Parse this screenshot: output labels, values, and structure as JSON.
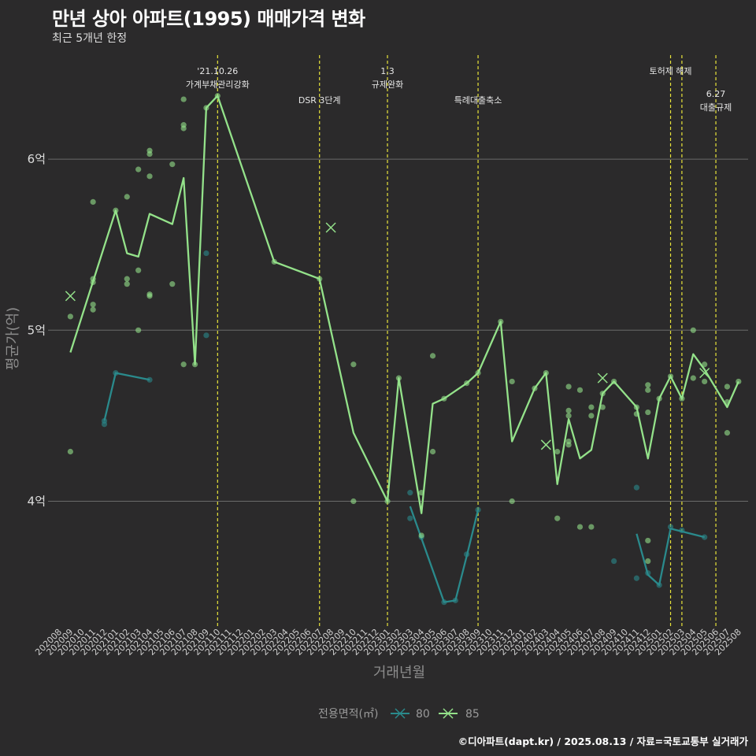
{
  "header": {
    "title": "만년 상아 아파트(1995) 매매가격 변화",
    "subtitle": "최근 5개년 한정"
  },
  "footer": {
    "caption": "©디아파트(dapt.kr) / 2025.08.13 / 자료=국토교통부 실거래가"
  },
  "colors": {
    "background": "#2b2a2b",
    "grid": "#6b6b6b",
    "series_80": "#2a8a8c",
    "series_85": "#94e28a",
    "annotation_line": "#e8e43a"
  },
  "chart_data": {
    "type": "line",
    "xlabel": "거래년월",
    "ylabel": "평균가(억)",
    "ylim": [
      3.3,
      6.65
    ],
    "y_ticks": [
      {
        "value": 4,
        "label": "4억"
      },
      {
        "value": 5,
        "label": "5억"
      },
      {
        "value": 6,
        "label": "6억"
      }
    ],
    "x_categories": [
      "202008",
      "202009",
      "202010",
      "202011",
      "202012",
      "202101",
      "202102",
      "202103",
      "202104",
      "202105",
      "202106",
      "202107",
      "202108",
      "202109",
      "202110",
      "202111",
      "202112",
      "202201",
      "202202",
      "202203",
      "202204",
      "202205",
      "202206",
      "202207",
      "202208",
      "202209",
      "202210",
      "202211",
      "202212",
      "202301",
      "202302",
      "202303",
      "202304",
      "202305",
      "202306",
      "202307",
      "202308",
      "202309",
      "202310",
      "202311",
      "202312",
      "202401",
      "202402",
      "202403",
      "202404",
      "202405",
      "202406",
      "202407",
      "202408",
      "202409",
      "202410",
      "202411",
      "202412",
      "202501",
      "202502",
      "202503",
      "202504",
      "202505",
      "202506",
      "202507",
      "202508"
    ],
    "legend": {
      "title": "전용면적(㎡)",
      "position": "bottom"
    },
    "annotations": [
      {
        "x": "2021-10",
        "lines": [
          "'21.10.26",
          "가계부채관리강화"
        ],
        "row": 0
      },
      {
        "x": "2022-07",
        "lines": [
          "DSR 3단계"
        ],
        "row": 1
      },
      {
        "x": "2023-01",
        "lines": [
          "1.3",
          "규제완화"
        ],
        "row": 0
      },
      {
        "x": "2023-09",
        "lines": [
          "특례대출축소"
        ],
        "row": 1
      },
      {
        "x": "2025-02",
        "lines": [
          "토허제 해제"
        ],
        "row": 0
      },
      {
        "x": "2025-03",
        "lines": [],
        "row": 0
      },
      {
        "x": "2025-06",
        "lines": [
          "6.27",
          "대출규제"
        ],
        "row": 2
      }
    ],
    "series": [
      {
        "name": "80",
        "line_segments": [
          [
            [
              "2020-12",
              4.47
            ],
            [
              "2021-01",
              4.75
            ],
            [
              "2021-04",
              4.71
            ]
          ],
          [
            [
              "2023-03",
              3.97
            ],
            [
              "2023-06",
              3.41
            ],
            [
              "2023-07",
              3.42
            ],
            [
              "2023-08",
              3.68
            ],
            [
              "2023-09",
              3.95
            ]
          ],
          [
            [
              "2024-11",
              3.81
            ],
            [
              "2024-12",
              3.57
            ],
            [
              "2025-01",
              3.51
            ],
            [
              "2025-02",
              3.84
            ],
            [
              "2025-05",
              3.79
            ]
          ]
        ],
        "points": [
          [
            "2020-12",
            4.47
          ],
          [
            "2020-12",
            4.45
          ],
          [
            "2021-01",
            4.75
          ],
          [
            "2021-04",
            4.71
          ],
          [
            "2021-09",
            4.97
          ],
          [
            "2021-09",
            5.45
          ],
          [
            "2023-03",
            4.05
          ],
          [
            "2023-03",
            3.9
          ],
          [
            "2023-04",
            3.79
          ],
          [
            "2023-06",
            3.41
          ],
          [
            "2023-07",
            3.42
          ],
          [
            "2023-08",
            3.69
          ],
          [
            "2023-09",
            3.95
          ],
          [
            "2024-09",
            3.65
          ],
          [
            "2024-11",
            4.08
          ],
          [
            "2024-11",
            3.55
          ],
          [
            "2024-12",
            3.58
          ],
          [
            "2025-01",
            3.51
          ],
          [
            "2025-02",
            3.85
          ],
          [
            "2025-03",
            3.83
          ],
          [
            "2025-05",
            3.79
          ]
        ],
        "cross_points": []
      },
      {
        "name": "85",
        "line_segments": [
          [
            [
              "2020-09",
              4.87
            ],
            [
              "2021-01",
              5.7
            ],
            [
              "2021-02",
              5.45
            ],
            [
              "2021-03",
              5.43
            ],
            [
              "2021-04",
              5.68
            ],
            [
              "2021-06",
              5.62
            ],
            [
              "2021-07",
              5.89
            ],
            [
              "2021-08",
              4.8
            ],
            [
              "2021-09",
              6.3
            ],
            [
              "2021-10",
              6.37
            ],
            [
              "2022-03",
              5.4
            ],
            [
              "2022-07",
              5.3
            ],
            [
              "2022-10",
              4.4
            ],
            [
              "2023-01",
              4.0
            ],
            [
              "2023-02",
              4.72
            ],
            [
              "2023-04",
              3.93
            ],
            [
              "2023-05",
              4.57
            ],
            [
              "2023-06",
              4.6
            ],
            [
              "2023-08",
              4.69
            ],
            [
              "2023-09",
              4.75
            ],
            [
              "2023-11",
              5.05
            ],
            [
              "2023-12",
              4.35
            ],
            [
              "2024-02",
              4.66
            ],
            [
              "2024-03",
              4.75
            ],
            [
              "2024-04",
              4.1
            ],
            [
              "2024-05",
              4.48
            ],
            [
              "2024-06",
              4.25
            ],
            [
              "2024-07",
              4.3
            ],
            [
              "2024-08",
              4.63
            ],
            [
              "2024-09",
              4.7
            ],
            [
              "2024-11",
              4.55
            ],
            [
              "2024-12",
              4.25
            ],
            [
              "2025-01",
              4.6
            ],
            [
              "2025-02",
              4.73
            ],
            [
              "2025-03",
              4.6
            ],
            [
              "2025-04",
              4.86
            ],
            [
              "2025-05",
              4.77
            ],
            [
              "2025-07",
              4.55
            ],
            [
              "2025-08",
              4.7
            ]
          ]
        ],
        "points": [
          [
            "2020-09",
            5.08
          ],
          [
            "2020-09",
            4.29
          ],
          [
            "2020-11",
            5.75
          ],
          [
            "2020-11",
            5.3
          ],
          [
            "2020-11",
            5.28
          ],
          [
            "2020-11",
            5.15
          ],
          [
            "2020-11",
            5.12
          ],
          [
            "2021-01",
            5.7
          ],
          [
            "2021-02",
            5.78
          ],
          [
            "2021-02",
            5.3
          ],
          [
            "2021-02",
            5.27
          ],
          [
            "2021-03",
            5.94
          ],
          [
            "2021-03",
            5.35
          ],
          [
            "2021-03",
            5.0
          ],
          [
            "2021-04",
            6.05
          ],
          [
            "2021-04",
            6.03
          ],
          [
            "2021-04",
            5.9
          ],
          [
            "2021-04",
            5.21
          ],
          [
            "2021-04",
            5.2
          ],
          [
            "2021-06",
            5.97
          ],
          [
            "2021-06",
            5.27
          ],
          [
            "2021-07",
            6.35
          ],
          [
            "2021-07",
            6.2
          ],
          [
            "2021-07",
            6.18
          ],
          [
            "2021-07",
            4.8
          ],
          [
            "2021-08",
            4.8
          ],
          [
            "2021-09",
            6.3
          ],
          [
            "2021-10",
            6.37
          ],
          [
            "2022-03",
            5.4
          ],
          [
            "2022-07",
            5.3
          ],
          [
            "2022-10",
            4.8
          ],
          [
            "2022-10",
            4.0
          ],
          [
            "2023-01",
            4.0
          ],
          [
            "2023-02",
            4.72
          ],
          [
            "2023-04",
            4.05
          ],
          [
            "2023-04",
            3.8
          ],
          [
            "2023-05",
            4.85
          ],
          [
            "2023-05",
            4.29
          ],
          [
            "2023-06",
            4.6
          ],
          [
            "2023-08",
            4.69
          ],
          [
            "2023-09",
            4.75
          ],
          [
            "2023-11",
            5.05
          ],
          [
            "2023-12",
            4.7
          ],
          [
            "2023-12",
            4.0
          ],
          [
            "2024-02",
            4.66
          ],
          [
            "2024-03",
            4.75
          ],
          [
            "2024-04",
            4.29
          ],
          [
            "2024-04",
            3.9
          ],
          [
            "2024-05",
            4.67
          ],
          [
            "2024-05",
            4.53
          ],
          [
            "2024-05",
            4.5
          ],
          [
            "2024-05",
            4.35
          ],
          [
            "2024-05",
            4.33
          ],
          [
            "2024-06",
            4.65
          ],
          [
            "2024-06",
            3.85
          ],
          [
            "2024-07",
            4.55
          ],
          [
            "2024-07",
            4.5
          ],
          [
            "2024-07",
            3.85
          ],
          [
            "2024-08",
            4.63
          ],
          [
            "2024-08",
            4.55
          ],
          [
            "2024-09",
            4.7
          ],
          [
            "2024-11",
            4.55
          ],
          [
            "2024-11",
            4.51
          ],
          [
            "2024-12",
            4.68
          ],
          [
            "2024-12",
            4.65
          ],
          [
            "2024-12",
            4.52
          ],
          [
            "2024-12",
            3.77
          ],
          [
            "2024-12",
            3.65
          ],
          [
            "2025-01",
            4.6
          ],
          [
            "2025-02",
            4.73
          ],
          [
            "2025-03",
            4.6
          ],
          [
            "2025-04",
            5.0
          ],
          [
            "2025-04",
            4.72
          ],
          [
            "2025-05",
            4.8
          ],
          [
            "2025-05",
            4.7
          ],
          [
            "2025-07",
            4.67
          ],
          [
            "2025-07",
            4.58
          ],
          [
            "2025-07",
            4.4
          ],
          [
            "2025-08",
            4.7
          ]
        ],
        "cross_points": [
          [
            "2020-09",
            5.2
          ],
          [
            "2022-08",
            5.6
          ],
          [
            "2024-03",
            4.33
          ],
          [
            "2024-08",
            4.72
          ],
          [
            "2025-05",
            4.75
          ]
        ]
      }
    ]
  }
}
